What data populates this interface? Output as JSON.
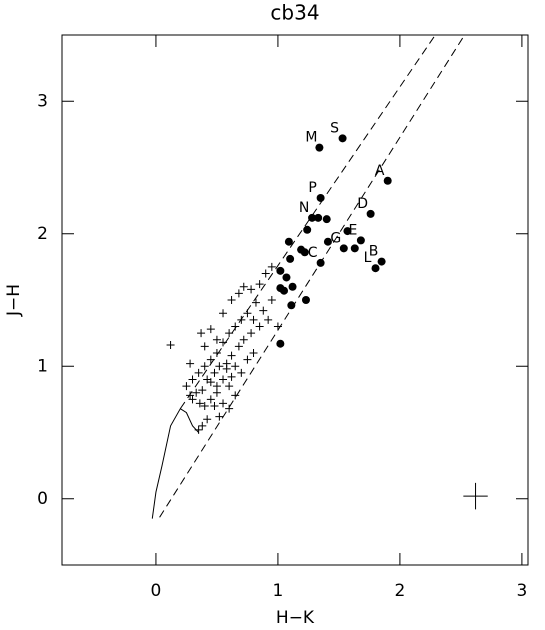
{
  "chart_data": {
    "type": "scatter",
    "title": "cb34",
    "x_label": "H−K",
    "y_label": "J−H",
    "xlim": [
      -0.77,
      3.05
    ],
    "ylim": [
      -0.5,
      3.5
    ],
    "xticks": [
      0,
      1,
      2,
      3
    ],
    "yticks": [
      0,
      1,
      2,
      3
    ],
    "grid": false,
    "series": [
      {
        "marker": "circle",
        "color": "#000000",
        "x": [
          1.34,
          1.53,
          1.35,
          1.28,
          1.33,
          1.9,
          1.76,
          1.68,
          1.85,
          1.8,
          1.54,
          1.35,
          1.09,
          1.24,
          1.4,
          1.41,
          1.57,
          1.63,
          1.19,
          1.22,
          1.1,
          1.02,
          1.07,
          1.05,
          1.12,
          1.11,
          1.23,
          1.02,
          1.02
        ],
        "values": [
          2.65,
          2.72,
          2.27,
          2.12,
          2.12,
          2.4,
          2.15,
          1.95,
          1.79,
          1.74,
          1.89,
          1.78,
          1.94,
          2.03,
          2.11,
          1.94,
          2.02,
          1.89,
          1.88,
          1.86,
          1.81,
          1.72,
          1.67,
          1.57,
          1.6,
          1.46,
          1.5,
          1.17,
          1.59
        ],
        "labels": [
          "M",
          "S",
          "P",
          "N",
          null,
          "A",
          "D",
          "E",
          "B",
          "L",
          "G",
          "C",
          null,
          null,
          null,
          null,
          null,
          null,
          null,
          null,
          null,
          null,
          null,
          null,
          null,
          null,
          null,
          null,
          null
        ]
      },
      {
        "marker": "plus",
        "color": "#000000",
        "x": [
          0.12,
          0.37,
          0.45,
          0.55,
          0.62,
          0.68,
          0.72,
          0.78,
          0.85,
          0.9,
          0.95,
          0.82,
          0.75,
          0.7,
          0.65,
          0.6,
          0.55,
          0.5,
          0.45,
          0.4,
          0.35,
          0.3,
          0.25,
          0.28,
          0.33,
          0.38,
          0.42,
          0.48,
          0.52,
          0.58,
          0.62,
          0.68,
          0.72,
          0.78,
          0.85,
          0.92,
          0.88,
          0.55,
          0.6,
          0.5,
          0.45,
          0.4,
          0.42,
          0.38,
          0.35,
          0.48,
          0.55,
          0.65,
          0.7,
          0.62,
          0.45,
          0.5,
          0.58,
          0.8,
          0.3,
          0.36,
          0.52,
          0.6,
          0.65,
          0.75,
          0.4,
          0.28,
          0.5,
          0.8,
          1.0,
          0.95
        ],
        "values": [
          1.16,
          1.25,
          1.28,
          1.4,
          1.5,
          1.55,
          1.6,
          1.58,
          1.62,
          1.7,
          1.75,
          1.48,
          1.4,
          1.35,
          1.3,
          1.25,
          1.18,
          1.1,
          1.05,
          1.0,
          0.95,
          0.9,
          0.85,
          0.78,
          0.8,
          0.82,
          0.9,
          0.95,
          1.0,
          1.02,
          1.08,
          1.15,
          1.2,
          1.25,
          1.3,
          1.35,
          1.42,
          0.9,
          0.85,
          0.8,
          0.75,
          0.7,
          0.6,
          0.55,
          0.52,
          0.7,
          0.72,
          0.78,
          0.95,
          0.92,
          0.88,
          0.85,
          0.98,
          1.1,
          0.75,
          0.72,
          0.62,
          0.68,
          1.0,
          1.05,
          1.15,
          1.02,
          1.2,
          1.35,
          1.3,
          1.5
        ]
      },
      {
        "marker": "line",
        "line_style": "dashed",
        "color": "#000000",
        "x": [
          0.2,
          2.29
        ],
        "values": [
          0.68,
          3.5
        ]
      },
      {
        "marker": "line",
        "line_style": "dashed",
        "color": "#000000",
        "x": [
          0.03,
          2.53
        ],
        "values": [
          -0.14,
          3.5
        ]
      },
      {
        "marker": "line",
        "line_style": "solid",
        "color": "#000000",
        "x": [
          -0.03,
          0.0,
          0.05,
          0.12,
          0.2,
          0.25,
          0.3,
          0.35
        ],
        "values": [
          -0.15,
          0.05,
          0.25,
          0.55,
          0.68,
          0.65,
          0.55,
          0.5
        ]
      },
      {
        "marker": "errorbar",
        "color": "#000000",
        "x": [
          2.62
        ],
        "values": [
          0.02
        ],
        "xerr": [
          0.1
        ],
        "yerr": [
          0.1
        ]
      }
    ]
  }
}
